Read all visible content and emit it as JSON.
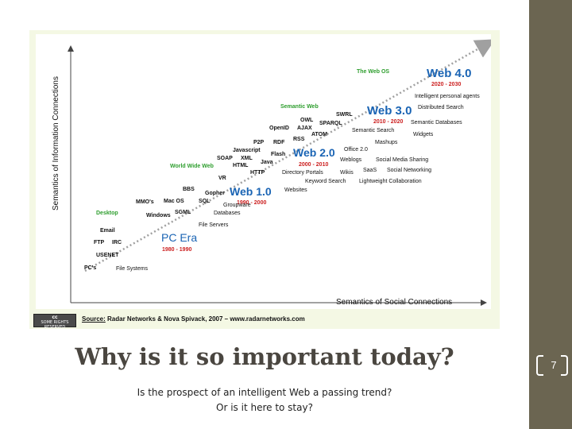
{
  "slide": {
    "title": "Why is it so important today?",
    "subtitle_lines": [
      "Is the prospect of an intelligent Web a passing trend?",
      "Or is it here to stay?"
    ],
    "page_number": "7"
  },
  "figure": {
    "y_axis_label": "Semantics of Information Connections",
    "x_axis_label": "Semantics of Social Connections",
    "source_label": "Source:",
    "source_text": "Radar Networks & Nova Spivack, 2007 – www.radarnetworks.com",
    "license_badge": {
      "mark": "cc",
      "text": "SOME RIGHTS RESERVED"
    },
    "colors": {
      "era": "#1a64b4",
      "years": "#cc2020",
      "green": "#2e9e2e",
      "text": "#111111",
      "dots": "#a0a0a0"
    },
    "eras": [
      {
        "name": "PC Era",
        "years": "1980 - 1990"
      },
      {
        "name": "Web 1.0",
        "years": "1990 - 2000"
      },
      {
        "name": "Web 2.0",
        "years": "2000 - 2010"
      },
      {
        "name": "Web 3.0",
        "years": "2010 - 2020"
      },
      {
        "name": "Web 4.0",
        "years": "2020 - 2030"
      }
    ],
    "green_labels": [
      "Desktop",
      "World Wide Web",
      "Semantic Web",
      "The Web OS"
    ],
    "tech_labels": [
      "PC's",
      "USENET",
      "FTP",
      "IRC",
      "Email",
      "Windows",
      "SGML",
      "Mac OS",
      "MMO's",
      "BBS",
      "Gopher",
      "SQL",
      "VR",
      "HTTP",
      "HTML",
      "SOAP",
      "XML",
      "Java",
      "Javascript",
      "Flash",
      "P2P",
      "RDF",
      "RSS",
      "ATOM",
      "OpenID",
      "AJAX",
      "OWL",
      "SPARQL",
      "SWRL"
    ],
    "app_labels": [
      "File Systems",
      "File Servers",
      "Databases",
      "Groupware",
      "Websites",
      "Directory Portals",
      "Keyword Search",
      "Wikis",
      "Weblogs",
      "Office 2.0",
      "Mashups",
      "SaaS",
      "Social Networking",
      "Social Media Sharing",
      "Lightweight Collaboration",
      "Semantic Search",
      "Widgets",
      "Semantic Databases",
      "Distributed Search",
      "Intelligent personal agents"
    ]
  }
}
